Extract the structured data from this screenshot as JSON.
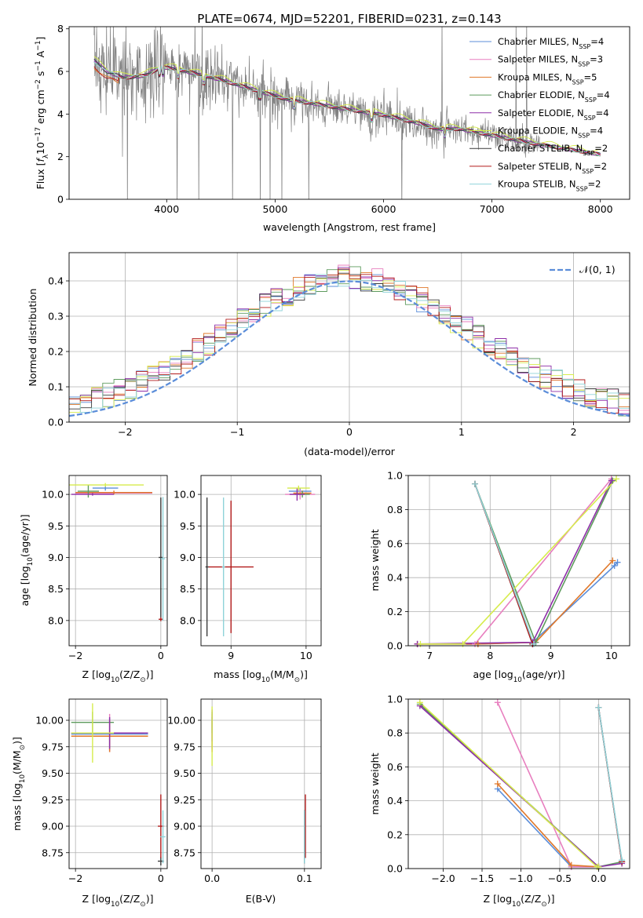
{
  "title": "PLATE=0674, MJD=52201, FIBERID=0231, z=0.143",
  "colors": {
    "Chabrier MILES": "#5b8dd9",
    "Salpeter MILES": "#e87fbf",
    "Kroupa MILES": "#e0782a",
    "Chabrier ELODIE": "#5e9b5e",
    "Salpeter ELODIE": "#8e2fa8",
    "Kroupa ELODIE": "#d6ec4c",
    "Chabrier STELIB": "#3a3a3a",
    "Salpeter STELIB": "#b21a1a",
    "Kroupa STELIB": "#8fd3d9",
    "data": "#808080",
    "gauss": "#5b8dd9"
  },
  "chart_data": [
    {
      "id": "spectrum",
      "type": "line",
      "title": "PLATE=0674, MJD=52201, FIBERID=0231, z=0.143",
      "xlabel": "wavelength [Angstrom, rest frame]",
      "ylabel_parts": [
        "Flux [",
        "f",
        "λ",
        "10",
        "−17",
        " erg cm",
        "−2",
        " s",
        "−1",
        " A",
        "−1",
        "]"
      ],
      "xlim": [
        3100,
        8270
      ],
      "ylim": [
        0,
        8.1
      ],
      "xticks": [
        4000,
        5000,
        6000,
        7000,
        8000
      ],
      "yticks": [
        0,
        2,
        4,
        6,
        8
      ],
      "legend_position": "upper-right",
      "legend": [
        {
          "name": "Chabrier MILES",
          "n": "4"
        },
        {
          "name": "Salpeter MILES",
          "n": "3"
        },
        {
          "name": "Kroupa MILES",
          "n": "5"
        },
        {
          "name": "Chabrier ELODIE",
          "n": "4"
        },
        {
          "name": "Salpeter ELODIE",
          "n": "4"
        },
        {
          "name": "Kroupa ELODIE",
          "n": "4"
        },
        {
          "name": "Chabrier STELIB",
          "n": "2"
        },
        {
          "name": "Salpeter STELIB",
          "n": "2"
        },
        {
          "name": "Kroupa STELIB",
          "n": "2"
        }
      ],
      "nssp_label": "N",
      "nssp_sub": "SSP",
      "continuum": {
        "x": [
          3330,
          3450,
          3600,
          3800,
          3950,
          4100,
          4300,
          4500,
          4700,
          4900,
          5100,
          5400,
          5700,
          6000,
          6300,
          6500,
          6700,
          6900,
          7100,
          7400,
          7700,
          8000
        ],
        "y": [
          6.5,
          6.0,
          5.7,
          5.8,
          6.2,
          6.1,
          5.85,
          5.6,
          5.3,
          5.0,
          4.7,
          4.45,
          4.2,
          3.95,
          3.6,
          3.3,
          3.3,
          3.1,
          2.9,
          2.6,
          2.35,
          2.1
        ]
      }
    },
    {
      "id": "residuals",
      "type": "step",
      "xlabel": "(data-model)/error",
      "ylabel": "Normed distribution",
      "xlim": [
        -2.5,
        2.5
      ],
      "ylim": [
        0,
        0.48
      ],
      "xticks": [
        -2,
        -1,
        0,
        1,
        2
      ],
      "yticks": [
        0.0,
        0.1,
        0.2,
        0.3,
        0.4
      ],
      "grid": true,
      "bin_width": 0.1,
      "gauss_label": "𝒩(0, 1)",
      "legend_position": "upper-right"
    },
    {
      "id": "age_vs_Z",
      "type": "errorbar",
      "xlabel_parts": [
        "Z [log",
        "10",
        "(Z/Z",
        "⊙",
        ")]"
      ],
      "ylabel_parts": [
        "age  [log",
        "10",
        "(age/yr)]"
      ],
      "xlim": [
        -2.15,
        0.15
      ],
      "ylim": [
        7.6,
        10.3
      ],
      "xticks": [
        -2,
        0
      ],
      "yticks": [
        8.0,
        8.5,
        9.0,
        9.5,
        10.0
      ],
      "grid": true,
      "points": [
        {
          "model": "Chabrier MILES",
          "x": -1.3,
          "y": 10.1,
          "xerr": 0.3,
          "yerr": 0.04
        },
        {
          "model": "Salpeter MILES",
          "x": -1.1,
          "y": 10.02,
          "xerr": 0.9,
          "yerr": 0.02
        },
        {
          "model": "Kroupa MILES",
          "x": -1.1,
          "y": 10.03,
          "xerr": 0.9,
          "yerr": 0.03
        },
        {
          "model": "Chabrier ELODIE",
          "x": -1.7,
          "y": 10.05,
          "xerr": 0.25,
          "yerr": 0.1
        },
        {
          "model": "Salpeter ELODIE",
          "x": -1.6,
          "y": 10.0,
          "xerr": 0.5,
          "yerr": 0.02
        },
        {
          "model": "Kroupa ELODIE",
          "x": -1.3,
          "y": 10.15,
          "xerr": 0.9,
          "yerr": 0.03
        },
        {
          "model": "Chabrier STELIB",
          "x": 0.0,
          "y": 9.0,
          "xerr": 0.05,
          "yerr": 0.95
        },
        {
          "model": "Salpeter STELIB",
          "x": 0.0,
          "y": 8.02,
          "xerr": 0.05,
          "yerr": 0.03
        },
        {
          "model": "Kroupa STELIB",
          "x": 0.05,
          "y": 8.98,
          "xerr": 0.05,
          "yerr": 0.98
        }
      ]
    },
    {
      "id": "age_vs_mass",
      "type": "errorbar",
      "xlabel_parts": [
        "mass [log",
        "10",
        "(M/M",
        "⊙",
        ")]"
      ],
      "ylabel_parts": [],
      "xlim": [
        8.6,
        10.2
      ],
      "ylim": [
        7.6,
        10.3
      ],
      "xticks": [
        9,
        10
      ],
      "yticks": [
        8.0,
        8.5,
        9.0,
        9.5,
        10.0
      ],
      "grid": true,
      "points": [
        {
          "model": "Chabrier MILES",
          "x": 9.92,
          "y": 10.05,
          "xerr": 0.15,
          "yerr": 0.05
        },
        {
          "model": "Salpeter MILES",
          "x": 9.92,
          "y": 10.0,
          "xerr": 0.2,
          "yerr": 0.08
        },
        {
          "model": "Kroupa MILES",
          "x": 9.95,
          "y": 10.02,
          "xerr": 0.12,
          "yerr": 0.04
        },
        {
          "model": "Chabrier ELODIE",
          "x": 9.95,
          "y": 10.0,
          "xerr": 0.1,
          "yerr": 0.05
        },
        {
          "model": "Salpeter ELODIE",
          "x": 9.88,
          "y": 10.0,
          "xerr": 0.1,
          "yerr": 0.1
        },
        {
          "model": "Kroupa ELODIE",
          "x": 9.9,
          "y": 10.1,
          "xerr": 0.15,
          "yerr": 0.04
        },
        {
          "model": "Chabrier STELIB",
          "x": 8.68,
          "y": 8.85,
          "xerr": 0.02,
          "yerr": 1.1
        },
        {
          "model": "Salpeter STELIB",
          "x": 9.0,
          "y": 8.85,
          "xerr": 0.3,
          "yerr": 1.05
        },
        {
          "model": "Kroupa STELIB",
          "x": 8.9,
          "y": 8.85,
          "xerr": 0.02,
          "yerr": 1.1
        }
      ]
    },
    {
      "id": "weight_vs_age",
      "type": "line",
      "xlabel_parts": [
        "age  [log",
        "10",
        "(age/yr)]"
      ],
      "ylabel": "mass weight",
      "xlim": [
        6.65,
        10.3
      ],
      "ylim": [
        0,
        1.0
      ],
      "xticks": [
        7,
        8,
        9,
        10
      ],
      "yticks": [
        0.0,
        0.2,
        0.4,
        0.6,
        0.8,
        1.0
      ],
      "grid": true,
      "series": [
        {
          "model": "Chabrier MILES",
          "x": [
            6.8,
            7.8,
            8.7,
            10.05,
            10.1
          ],
          "y": [
            0.01,
            0.01,
            0.02,
            0.47,
            0.49
          ]
        },
        {
          "model": "Salpeter MILES",
          "x": [
            6.8,
            7.75,
            10.0
          ],
          "y": [
            0.01,
            0.01,
            0.98
          ]
        },
        {
          "model": "Kroupa MILES",
          "x": [
            6.8,
            7.8,
            8.75,
            10.02
          ],
          "y": [
            0.01,
            0.01,
            0.02,
            0.5
          ]
        },
        {
          "model": "Chabrier ELODIE",
          "x": [
            7.75,
            8.75,
            10.02
          ],
          "y": [
            0.95,
            0.02,
            0.97
          ]
        },
        {
          "model": "Salpeter ELODIE",
          "x": [
            6.8,
            8.7,
            10.0
          ],
          "y": [
            0.01,
            0.02,
            0.97
          ]
        },
        {
          "model": "Kroupa ELODIE",
          "x": [
            6.85,
            7.55,
            10.08
          ],
          "y": [
            0.01,
            0.01,
            0.98
          ]
        },
        {
          "model": "Chabrier STELIB",
          "x": [
            7.75,
            8.7
          ],
          "y": [
            0.95,
            0.01
          ]
        },
        {
          "model": "Salpeter STELIB",
          "x": [
            7.75,
            8.7
          ],
          "y": [
            0.95,
            0.01
          ]
        },
        {
          "model": "Kroupa STELIB",
          "x": [
            7.75,
            8.72
          ],
          "y": [
            0.95,
            0.01
          ]
        }
      ]
    },
    {
      "id": "mass_vs_Z",
      "type": "errorbar",
      "xlabel_parts": [
        "Z [log",
        "10",
        "(Z/Z",
        "⊙",
        ")]"
      ],
      "ylabel_parts": [
        "mass [log",
        "10",
        "(M/M",
        "⊙",
        ")]"
      ],
      "xlim": [
        -2.15,
        0.15
      ],
      "ylim": [
        8.6,
        10.2
      ],
      "xticks": [
        -2,
        0
      ],
      "yticks": [
        8.75,
        9.0,
        9.25,
        9.5,
        9.75,
        10.0
      ],
      "grid": true,
      "points": [
        {
          "model": "Chabrier MILES",
          "x": -1.2,
          "y": 9.87,
          "xerr": 0.9,
          "yerr": 0.15
        },
        {
          "model": "Salpeter MILES",
          "x": -1.2,
          "y": 9.88,
          "xerr": 0.8,
          "yerr": 0.18
        },
        {
          "model": "Kroupa MILES",
          "x": -1.2,
          "y": 9.85,
          "xerr": 0.9,
          "yerr": 0.15
        },
        {
          "model": "Chabrier ELODIE",
          "x": -1.6,
          "y": 9.98,
          "xerr": 0.5,
          "yerr": 0.1
        },
        {
          "model": "Salpeter ELODIE",
          "x": -1.2,
          "y": 9.88,
          "xerr": 0.9,
          "yerr": 0.15
        },
        {
          "model": "Kroupa ELODIE",
          "x": -1.6,
          "y": 9.88,
          "xerr": 0.5,
          "yerr": 0.28
        },
        {
          "model": "Chabrier STELIB",
          "x": 0.0,
          "y": 8.67,
          "xerr": 0.07,
          "yerr": 0.04
        },
        {
          "model": "Salpeter STELIB",
          "x": 0.0,
          "y": 9.0,
          "xerr": 0.07,
          "yerr": 0.3
        },
        {
          "model": "Kroupa STELIB",
          "x": 0.05,
          "y": 8.9,
          "xerr": 0.06,
          "yerr": 0.25
        }
      ]
    },
    {
      "id": "mass_vs_EBV",
      "type": "errorbar",
      "xlabel": "E(B-V)",
      "ylabel_parts": [],
      "xlim": [
        -0.012,
        0.118
      ],
      "ylim": [
        8.6,
        10.2
      ],
      "xticks": [
        0.0,
        0.1
      ],
      "yticks": [
        8.75,
        9.0,
        9.25,
        9.5,
        9.75,
        10.0
      ],
      "grid": true,
      "points": [
        {
          "model": "Chabrier MILES",
          "x": 0.0,
          "y": 9.88,
          "xerr": 0.0,
          "yerr": 0.15
        },
        {
          "model": "Salpeter MILES",
          "x": 0.0,
          "y": 9.88,
          "xerr": 0.0,
          "yerr": 0.18
        },
        {
          "model": "Kroupa MILES",
          "x": 0.0,
          "y": 9.85,
          "xerr": 0.0,
          "yerr": 0.15
        },
        {
          "model": "Chabrier ELODIE",
          "x": 0.0,
          "y": 9.98,
          "xerr": 0.0,
          "yerr": 0.1
        },
        {
          "model": "Salpeter ELODIE",
          "x": 0.0,
          "y": 9.95,
          "xerr": 0.0,
          "yerr": 0.15
        },
        {
          "model": "Kroupa ELODIE",
          "x": 0.0,
          "y": 9.85,
          "xerr": 0.0,
          "yerr": 0.28
        },
        {
          "model": "Chabrier STELIB",
          "x": 0.1,
          "y": 8.9,
          "xerr": 0.0,
          "yerr": 0.25
        },
        {
          "model": "Salpeter STELIB",
          "x": 0.101,
          "y": 9.0,
          "xerr": 0.0,
          "yerr": 0.3
        },
        {
          "model": "Kroupa STELIB",
          "x": 0.1,
          "y": 8.9,
          "xerr": 0.0,
          "yerr": 0.25
        }
      ]
    },
    {
      "id": "weight_vs_Z",
      "type": "line",
      "xlabel_parts": [
        "Z [log",
        "10",
        "(Z/Z",
        "⊙",
        ")]"
      ],
      "ylabel": "mass weight",
      "xlim": [
        -2.45,
        0.4
      ],
      "ylim": [
        0,
        1.0
      ],
      "xticks": [
        -2.0,
        -1.5,
        -1.0,
        -0.5,
        0.0
      ],
      "yticks": [
        0.0,
        0.2,
        0.4,
        0.6,
        0.8,
        1.0
      ],
      "grid": true,
      "series": [
        {
          "model": "Chabrier MILES",
          "x": [
            -1.3,
            -0.35,
            0.0
          ],
          "y": [
            0.47,
            0.01,
            0.01
          ]
        },
        {
          "model": "Salpeter MILES",
          "x": [
            -1.3,
            -0.35,
            0.0
          ],
          "y": [
            0.98,
            0.01,
            0.01
          ]
        },
        {
          "model": "Kroupa MILES",
          "x": [
            -1.3,
            -0.35,
            0.0
          ],
          "y": [
            0.5,
            0.02,
            0.01
          ]
        },
        {
          "model": "Chabrier ELODIE",
          "x": [
            -2.3,
            0.0,
            0.3
          ],
          "y": [
            0.97,
            0.01,
            0.04
          ]
        },
        {
          "model": "Salpeter ELODIE",
          "x": [
            -2.3,
            0.0,
            0.3
          ],
          "y": [
            0.96,
            0.01,
            0.03
          ]
        },
        {
          "model": "Kroupa ELODIE",
          "x": [
            -2.3,
            -0.02,
            0.0
          ],
          "y": [
            0.98,
            0.01,
            0.01
          ]
        },
        {
          "model": "Chabrier STELIB",
          "x": [
            0.0,
            0.3
          ],
          "y": [
            0.95,
            0.04
          ]
        },
        {
          "model": "Salpeter STELIB",
          "x": [
            0.0,
            0.3
          ],
          "y": [
            0.95,
            0.04
          ]
        },
        {
          "model": "Kroupa STELIB",
          "x": [
            0.0,
            0.3
          ],
          "y": [
            0.95,
            0.05
          ]
        }
      ]
    }
  ]
}
